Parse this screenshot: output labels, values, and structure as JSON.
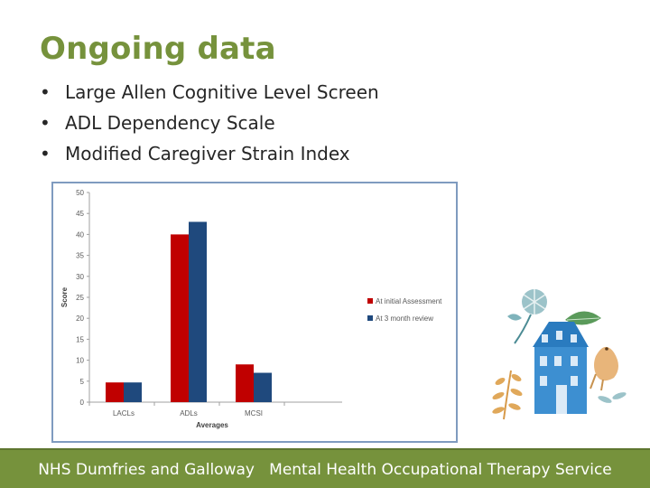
{
  "slide": {
    "title": "Ongoing data",
    "bullets": [
      "Large Allen Cognitive Level Screen",
      "ADL Dependency Scale",
      "Modified Caregiver Strain Index"
    ],
    "footer": "NHS Dumfries and Galloway   Mental Health Occupational Therapy Service"
  },
  "colors": {
    "accent": "#76923c",
    "series1": "#c00000",
    "series2": "#1f497d"
  },
  "illustration": {
    "name": "house-bird-leaves-illustration"
  },
  "chart_data": {
    "type": "bar",
    "categories": [
      "LACLs",
      "ADLs",
      "MCSI"
    ],
    "series": [
      {
        "name": "At initial Assessment",
        "values": [
          4.7,
          40,
          9
        ]
      },
      {
        "name": "At 3 month review",
        "values": [
          4.7,
          43,
          7
        ]
      }
    ],
    "xlabel": "Averages",
    "ylabel": "Score",
    "ylim": [
      0,
      50
    ],
    "yticks": [
      0,
      5,
      10,
      15,
      20,
      25,
      30,
      35,
      40,
      45,
      50
    ],
    "legend": "right",
    "grid": false
  }
}
